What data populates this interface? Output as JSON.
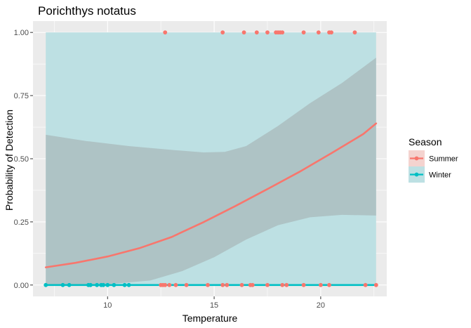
{
  "chart_data": {
    "type": "scatter",
    "title": "Porichthys notatus",
    "xlabel": "Temperature",
    "ylabel": "Probability of Detection",
    "xlim": [
      6.5,
      23.1
    ],
    "ylim": [
      -0.045,
      1.045
    ],
    "xticks": [
      10,
      15,
      20
    ],
    "yticks": [
      0.0,
      0.25,
      0.5,
      0.75,
      1.0
    ],
    "ytick_labels": [
      "0.00",
      "0.25",
      "0.50",
      "0.75",
      "1.00"
    ],
    "grid": true,
    "legend": {
      "title": "Season",
      "placement": "right"
    },
    "series": [
      {
        "name": "Summer",
        "color": "#f8766d",
        "points": [
          {
            "x": 12.7,
            "y": 1
          },
          {
            "x": 15.4,
            "y": 1
          },
          {
            "x": 16.4,
            "y": 1
          },
          {
            "x": 17.0,
            "y": 1
          },
          {
            "x": 17.5,
            "y": 1
          },
          {
            "x": 17.9,
            "y": 1
          },
          {
            "x": 18.0,
            "y": 1
          },
          {
            "x": 18.1,
            "y": 1
          },
          {
            "x": 18.2,
            "y": 1
          },
          {
            "x": 19.2,
            "y": 1
          },
          {
            "x": 19.9,
            "y": 1
          },
          {
            "x": 20.4,
            "y": 1
          },
          {
            "x": 20.5,
            "y": 1
          },
          {
            "x": 21.6,
            "y": 1
          },
          {
            "x": 12.5,
            "y": 0
          },
          {
            "x": 12.6,
            "y": 0
          },
          {
            "x": 12.7,
            "y": 0
          },
          {
            "x": 12.9,
            "y": 0
          },
          {
            "x": 13.2,
            "y": 0
          },
          {
            "x": 13.7,
            "y": 0
          },
          {
            "x": 14.7,
            "y": 0
          },
          {
            "x": 15.4,
            "y": 0
          },
          {
            "x": 15.6,
            "y": 0
          },
          {
            "x": 16.3,
            "y": 0
          },
          {
            "x": 16.7,
            "y": 0
          },
          {
            "x": 16.8,
            "y": 0
          },
          {
            "x": 17.5,
            "y": 0
          },
          {
            "x": 18.2,
            "y": 0
          },
          {
            "x": 18.4,
            "y": 0
          },
          {
            "x": 19.2,
            "y": 0
          },
          {
            "x": 20.0,
            "y": 0
          },
          {
            "x": 20.4,
            "y": 0
          },
          {
            "x": 22.1,
            "y": 0
          },
          {
            "x": 22.6,
            "y": 0
          }
        ],
        "fit": [
          {
            "x": 7.1,
            "y": 0.07
          },
          {
            "x": 8.5,
            "y": 0.088
          },
          {
            "x": 10.0,
            "y": 0.113
          },
          {
            "x": 11.5,
            "y": 0.146
          },
          {
            "x": 13.0,
            "y": 0.19
          },
          {
            "x": 14.5,
            "y": 0.249
          },
          {
            "x": 16.0,
            "y": 0.313
          },
          {
            "x": 17.5,
            "y": 0.38
          },
          {
            "x": 19.0,
            "y": 0.448
          },
          {
            "x": 20.5,
            "y": 0.522
          },
          {
            "x": 22.0,
            "y": 0.598
          },
          {
            "x": 22.6,
            "y": 0.64
          }
        ],
        "ci_lower": [
          {
            "x": 7.1,
            "y": 0.0
          },
          {
            "x": 10.0,
            "y": 0.003
          },
          {
            "x": 12.0,
            "y": 0.018
          },
          {
            "x": 13.5,
            "y": 0.055
          },
          {
            "x": 15.0,
            "y": 0.11
          },
          {
            "x": 16.5,
            "y": 0.18
          },
          {
            "x": 18.0,
            "y": 0.237
          },
          {
            "x": 19.5,
            "y": 0.268
          },
          {
            "x": 21.0,
            "y": 0.278
          },
          {
            "x": 22.6,
            "y": 0.275
          }
        ],
        "ci_upper": [
          {
            "x": 7.1,
            "y": 0.595
          },
          {
            "x": 9.0,
            "y": 0.57
          },
          {
            "x": 11.0,
            "y": 0.55
          },
          {
            "x": 13.0,
            "y": 0.535
          },
          {
            "x": 14.5,
            "y": 0.525
          },
          {
            "x": 15.5,
            "y": 0.527
          },
          {
            "x": 16.5,
            "y": 0.55
          },
          {
            "x": 18.0,
            "y": 0.63
          },
          {
            "x": 19.5,
            "y": 0.72
          },
          {
            "x": 21.0,
            "y": 0.8
          },
          {
            "x": 22.6,
            "y": 0.9
          }
        ]
      },
      {
        "name": "Winter",
        "color": "#00bfc4",
        "points": [
          {
            "x": 7.1,
            "y": 0
          },
          {
            "x": 7.9,
            "y": 0
          },
          {
            "x": 8.2,
            "y": 0
          },
          {
            "x": 9.1,
            "y": 0
          },
          {
            "x": 9.2,
            "y": 0
          },
          {
            "x": 9.5,
            "y": 0
          },
          {
            "x": 9.7,
            "y": 0
          },
          {
            "x": 9.8,
            "y": 0
          },
          {
            "x": 10.0,
            "y": 0
          },
          {
            "x": 10.3,
            "y": 0
          },
          {
            "x": 10.8,
            "y": 0
          },
          {
            "x": 11.0,
            "y": 0
          }
        ],
        "fit": [
          {
            "x": 7.1,
            "y": 0.0
          },
          {
            "x": 22.6,
            "y": 0.0
          }
        ],
        "ci_lower": [
          {
            "x": 7.1,
            "y": 0.0
          },
          {
            "x": 22.6,
            "y": 0.0
          }
        ],
        "ci_upper": [
          {
            "x": 7.1,
            "y": 1.0
          },
          {
            "x": 22.6,
            "y": 1.0
          }
        ]
      }
    ]
  }
}
